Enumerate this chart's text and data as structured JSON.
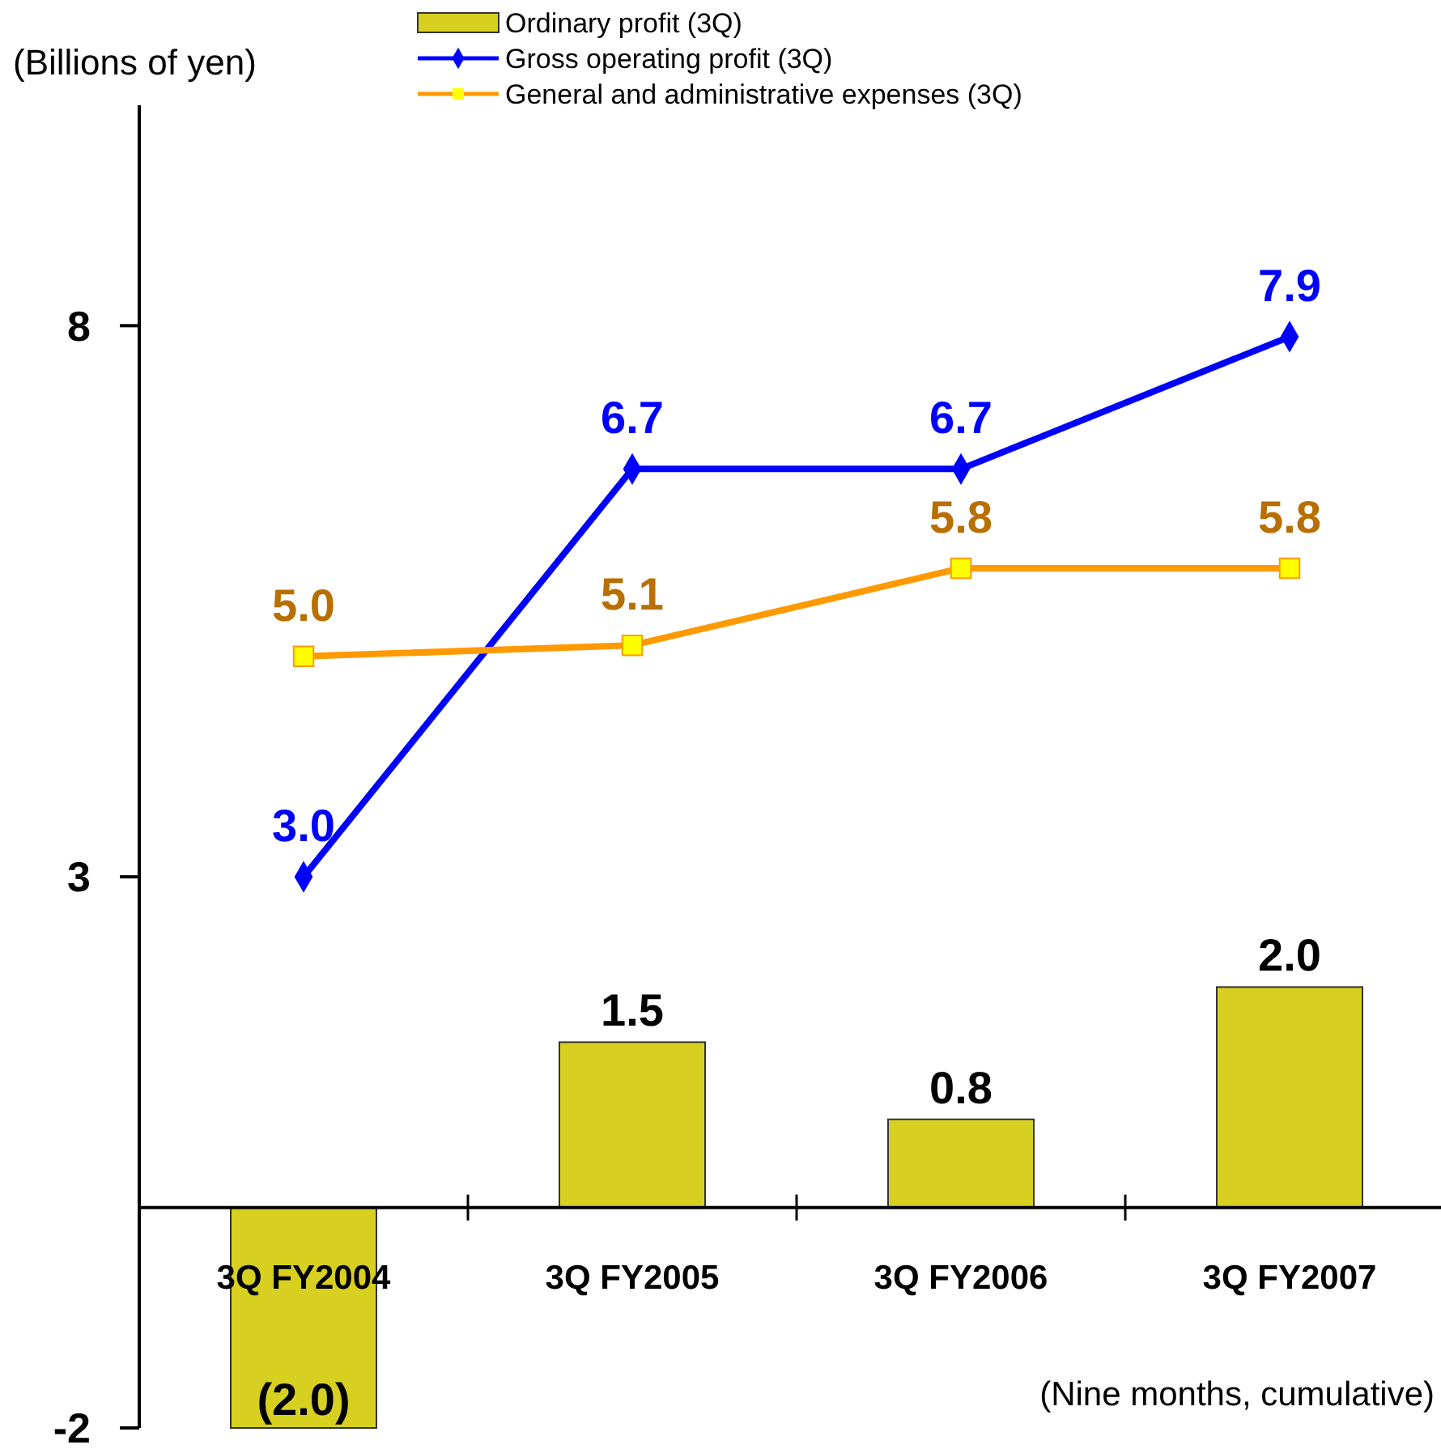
{
  "chart_data": {
    "type": "bar",
    "ylabel": "(Billions of yen)",
    "categories": [
      "3Q FY2004",
      "3Q FY2005",
      "3Q FY2006",
      "3Q FY2007"
    ],
    "series": [
      {
        "name": "Ordinary profit (3Q)",
        "color": "#d8d020",
        "values": [
          -2.0,
          1.5,
          0.8,
          2.0
        ],
        "value_labels": [
          "(2.0)",
          "1.5",
          "0.8",
          "2.0"
        ]
      },
      {
        "name": "Gross operating profit (3Q)",
        "type": "line",
        "color": "#0000ff",
        "marker": "diamond",
        "values": [
          3.0,
          6.7,
          6.7,
          7.9
        ],
        "value_labels": [
          "3.0",
          "6.7",
          "6.7",
          "7.9"
        ]
      },
      {
        "name": "General and administrative expenses (3Q)",
        "type": "line",
        "color": "#ff9900",
        "marker": "square",
        "values": [
          5.0,
          5.1,
          5.8,
          5.8
        ],
        "value_labels": [
          "5.0",
          "5.1",
          "5.8",
          "5.8"
        ]
      }
    ],
    "ylim": [
      -2,
      10
    ],
    "yticks": [
      -2,
      3,
      8
    ],
    "grid": false,
    "legend": "top",
    "annotations": [
      "(Nine months, cumulative)"
    ]
  }
}
